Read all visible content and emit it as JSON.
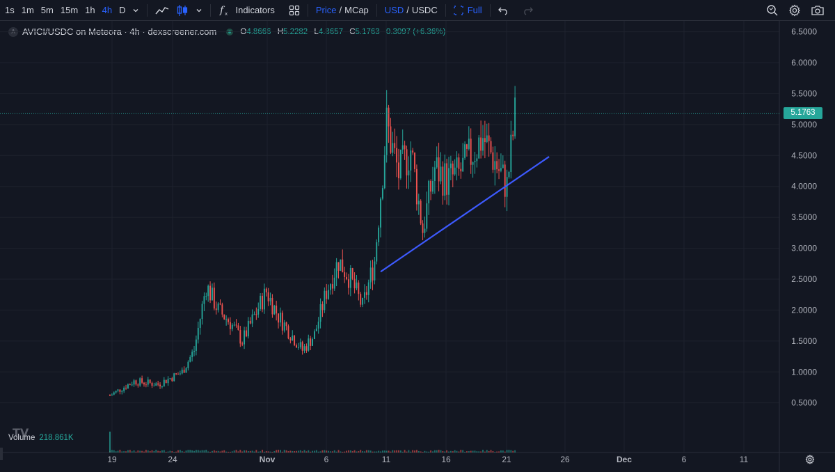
{
  "toolbar": {
    "timeframes": [
      {
        "label": "1s",
        "active": false
      },
      {
        "label": "1m",
        "active": false
      },
      {
        "label": "5m",
        "active": false
      },
      {
        "label": "15m",
        "active": false
      },
      {
        "label": "1h",
        "active": false
      },
      {
        "label": "4h",
        "active": true
      },
      {
        "label": "D",
        "active": false
      }
    ],
    "indicators_label": "Indicators",
    "price_label": "Price",
    "mcap_label": "MCap",
    "usd_label": "USD",
    "usdc_label": "USDC",
    "full_label": "Full",
    "slash": "/"
  },
  "legend": {
    "symbol_badge": "A",
    "title": "AVICI/USDC on Meteora · 4h · dexscreener.com",
    "open_key": "O",
    "open": "4.8666",
    "high_key": "H",
    "high": "5.2282",
    "low_key": "L",
    "low": "4.8657",
    "close_key": "C",
    "close": "5.1763",
    "change": "0.3097 (+6.36%)"
  },
  "volume": {
    "label": "Volume",
    "value": "218.861K"
  },
  "current_price_tag": "5.1763",
  "colors": {
    "up": "#26a69a",
    "down": "#ef5350",
    "trendline": "#3d5afe",
    "accent": "#2962ff"
  },
  "chart_data": {
    "type": "candlestick",
    "timeframe": "4h",
    "y_ticks": [
      "6.5000",
      "6.0000",
      "5.5000",
      "5.0000",
      "4.5000",
      "4.0000",
      "3.5000",
      "3.0000",
      "2.5000",
      "2.0000",
      "1.5000",
      "1.0000",
      "0.5000"
    ],
    "ylim": [
      0.1,
      6.7
    ],
    "x_ticks": [
      "19",
      "24",
      "Nov",
      "6",
      "11",
      "16",
      "21",
      "26",
      "Dec",
      "6",
      "11"
    ],
    "close_path": [
      [
        "19",
        0.62
      ],
      [
        "21",
        0.85
      ],
      [
        "23",
        0.8
      ],
      [
        "25",
        1.0
      ],
      [
        "26",
        1.35
      ],
      [
        "27",
        2.4
      ],
      [
        "28",
        2.0
      ],
      [
        "29",
        1.8
      ],
      [
        "30",
        1.5
      ],
      [
        "Nov",
        2.3
      ],
      [
        "2",
        1.9
      ],
      [
        "4",
        1.35
      ],
      [
        "5",
        1.6
      ],
      [
        "6",
        2.3
      ],
      [
        "7",
        2.8
      ],
      [
        "8",
        2.5
      ],
      [
        "9",
        2.05
      ],
      [
        "10",
        2.8
      ],
      [
        "11",
        5.0
      ],
      [
        "12",
        4.2
      ],
      [
        "13",
        4.6
      ],
      [
        "14",
        3.3
      ],
      [
        "15",
        4.3
      ],
      [
        "16",
        4.1
      ],
      [
        "17",
        4.2
      ],
      [
        "18",
        4.5
      ],
      [
        "19",
        4.8
      ],
      [
        "20",
        4.4
      ],
      [
        "21",
        4.0
      ],
      [
        "21.7",
        5.18
      ]
    ],
    "trendline": {
      "start": [
        "10.5",
        2.62
      ],
      "end": [
        "24.5",
        4.48
      ]
    },
    "current_price": 5.1763
  }
}
